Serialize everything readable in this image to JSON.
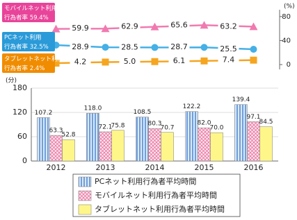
{
  "chart_data": [
    {
      "type": "line",
      "y_axis_label": "(%)",
      "ylim": [
        -8,
        96
      ],
      "yticks": [
        0,
        40,
        80
      ],
      "series": [
        {
          "label_lines": [
            "モバイルネット利用",
            "行為者率"
          ],
          "color": "#f07ab0",
          "box_color": "#e8449a",
          "marker": "triangle",
          "values": [
            59.4,
            59.9,
            62.9,
            65.6,
            63.2
          ],
          "value_labels": [
            "59.4%",
            "59.9",
            "62.9",
            "65.6",
            "63.2"
          ]
        },
        {
          "label_lines": [
            "PCネット利用",
            "行為者率"
          ],
          "color": "#45b0e6",
          "box_color": "#2a9ad8",
          "marker": "circle",
          "values": [
            32.5,
            28.9,
            28.5,
            28.7,
            25.5
          ],
          "value_labels": [
            "32.5%",
            "28.9",
            "28.5",
            "28.7",
            "25.5"
          ]
        },
        {
          "label_lines": [
            "タブレットネット利用",
            "行為者率"
          ],
          "color": "#f5a51f",
          "box_color": "#f08c00",
          "marker": "square",
          "values": [
            2.4,
            4.2,
            5.0,
            6.1,
            7.4
          ],
          "value_labels": [
            "2.4%",
            "4.2",
            "5.0",
            "6.1",
            "7.4"
          ]
        }
      ]
    },
    {
      "type": "bar",
      "y_axis_label": "(分)",
      "categories": [
        "2012",
        "2013",
        "2014",
        "2015",
        "2016"
      ],
      "ylim": [
        0,
        180
      ],
      "yticks": [
        0,
        60,
        120,
        180
      ],
      "grid": true,
      "series": [
        {
          "name": "PCネット利用行為者平均時間",
          "color": "#7aa6dc",
          "pattern": "stripes",
          "values": [
            107.2,
            118.0,
            108.5,
            122.2,
            139.4
          ],
          "value_labels": [
            "107.2",
            "118.0",
            "108.5",
            "122.2",
            "139.4"
          ]
        },
        {
          "name": "モバイルネット利用行為者平均時間",
          "color": "#e8709e",
          "pattern": "cross",
          "values": [
            63.3,
            72.1,
            80.3,
            82.0,
            97.1
          ],
          "value_labels": [
            "63.3",
            "72.1",
            "80.3",
            "82.0",
            "97.1"
          ]
        },
        {
          "name": "タブレットネット利用行為者平均時間",
          "color": "#fff68a",
          "pattern": "solid",
          "values": [
            52.8,
            75.8,
            70.7,
            70.0,
            84.5
          ],
          "value_labels": [
            "52.8",
            "75.8",
            "70.7",
            "70.0",
            "84.5"
          ]
        }
      ]
    }
  ]
}
